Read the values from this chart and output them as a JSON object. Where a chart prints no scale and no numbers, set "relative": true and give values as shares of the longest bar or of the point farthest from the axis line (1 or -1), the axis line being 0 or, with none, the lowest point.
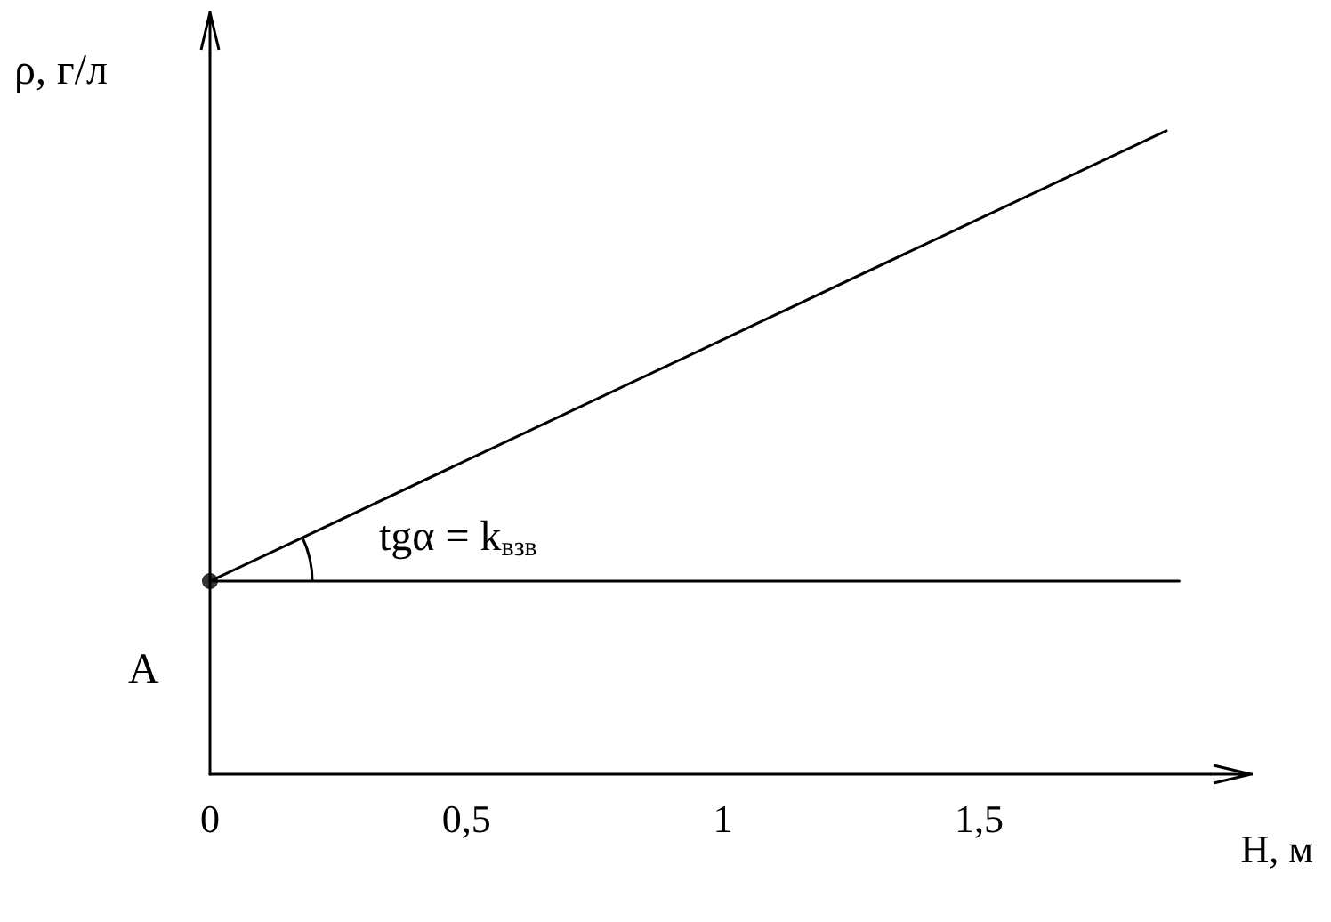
{
  "chart_data": {
    "type": "line",
    "relative": true,
    "xlabel": "H, м",
    "ylabel": "ρ, г/л",
    "xlim": [
      0,
      1.95
    ],
    "xticks": [
      0,
      {
        "value": 0.5,
        "label": "0,5"
      },
      1,
      {
        "value": 1.5,
        "label": "1,5"
      }
    ],
    "tick_labels": "x",
    "grid": false,
    "marker": "none",
    "line_style": "solid",
    "series": [
      {
        "color": "#000000",
        "x": [
          0,
          1.865
        ],
        "values": [
          0.3,
          1
        ]
      },
      {
        "color": "#000000",
        "x": [
          0,
          1.89
        ],
        "values": [
          0.3,
          0.3
        ]
      },
      {
        "type": "scatter",
        "color": "#000000",
        "marker": "circle",
        "x": [
          0
        ],
        "values": [
          0.3
        ]
      }
    ],
    "annotations": [
      {
        "text": "A",
        "x": 0,
        "y": 0.3
      },
      "tgα = k$_{взв}$"
    ]
  }
}
